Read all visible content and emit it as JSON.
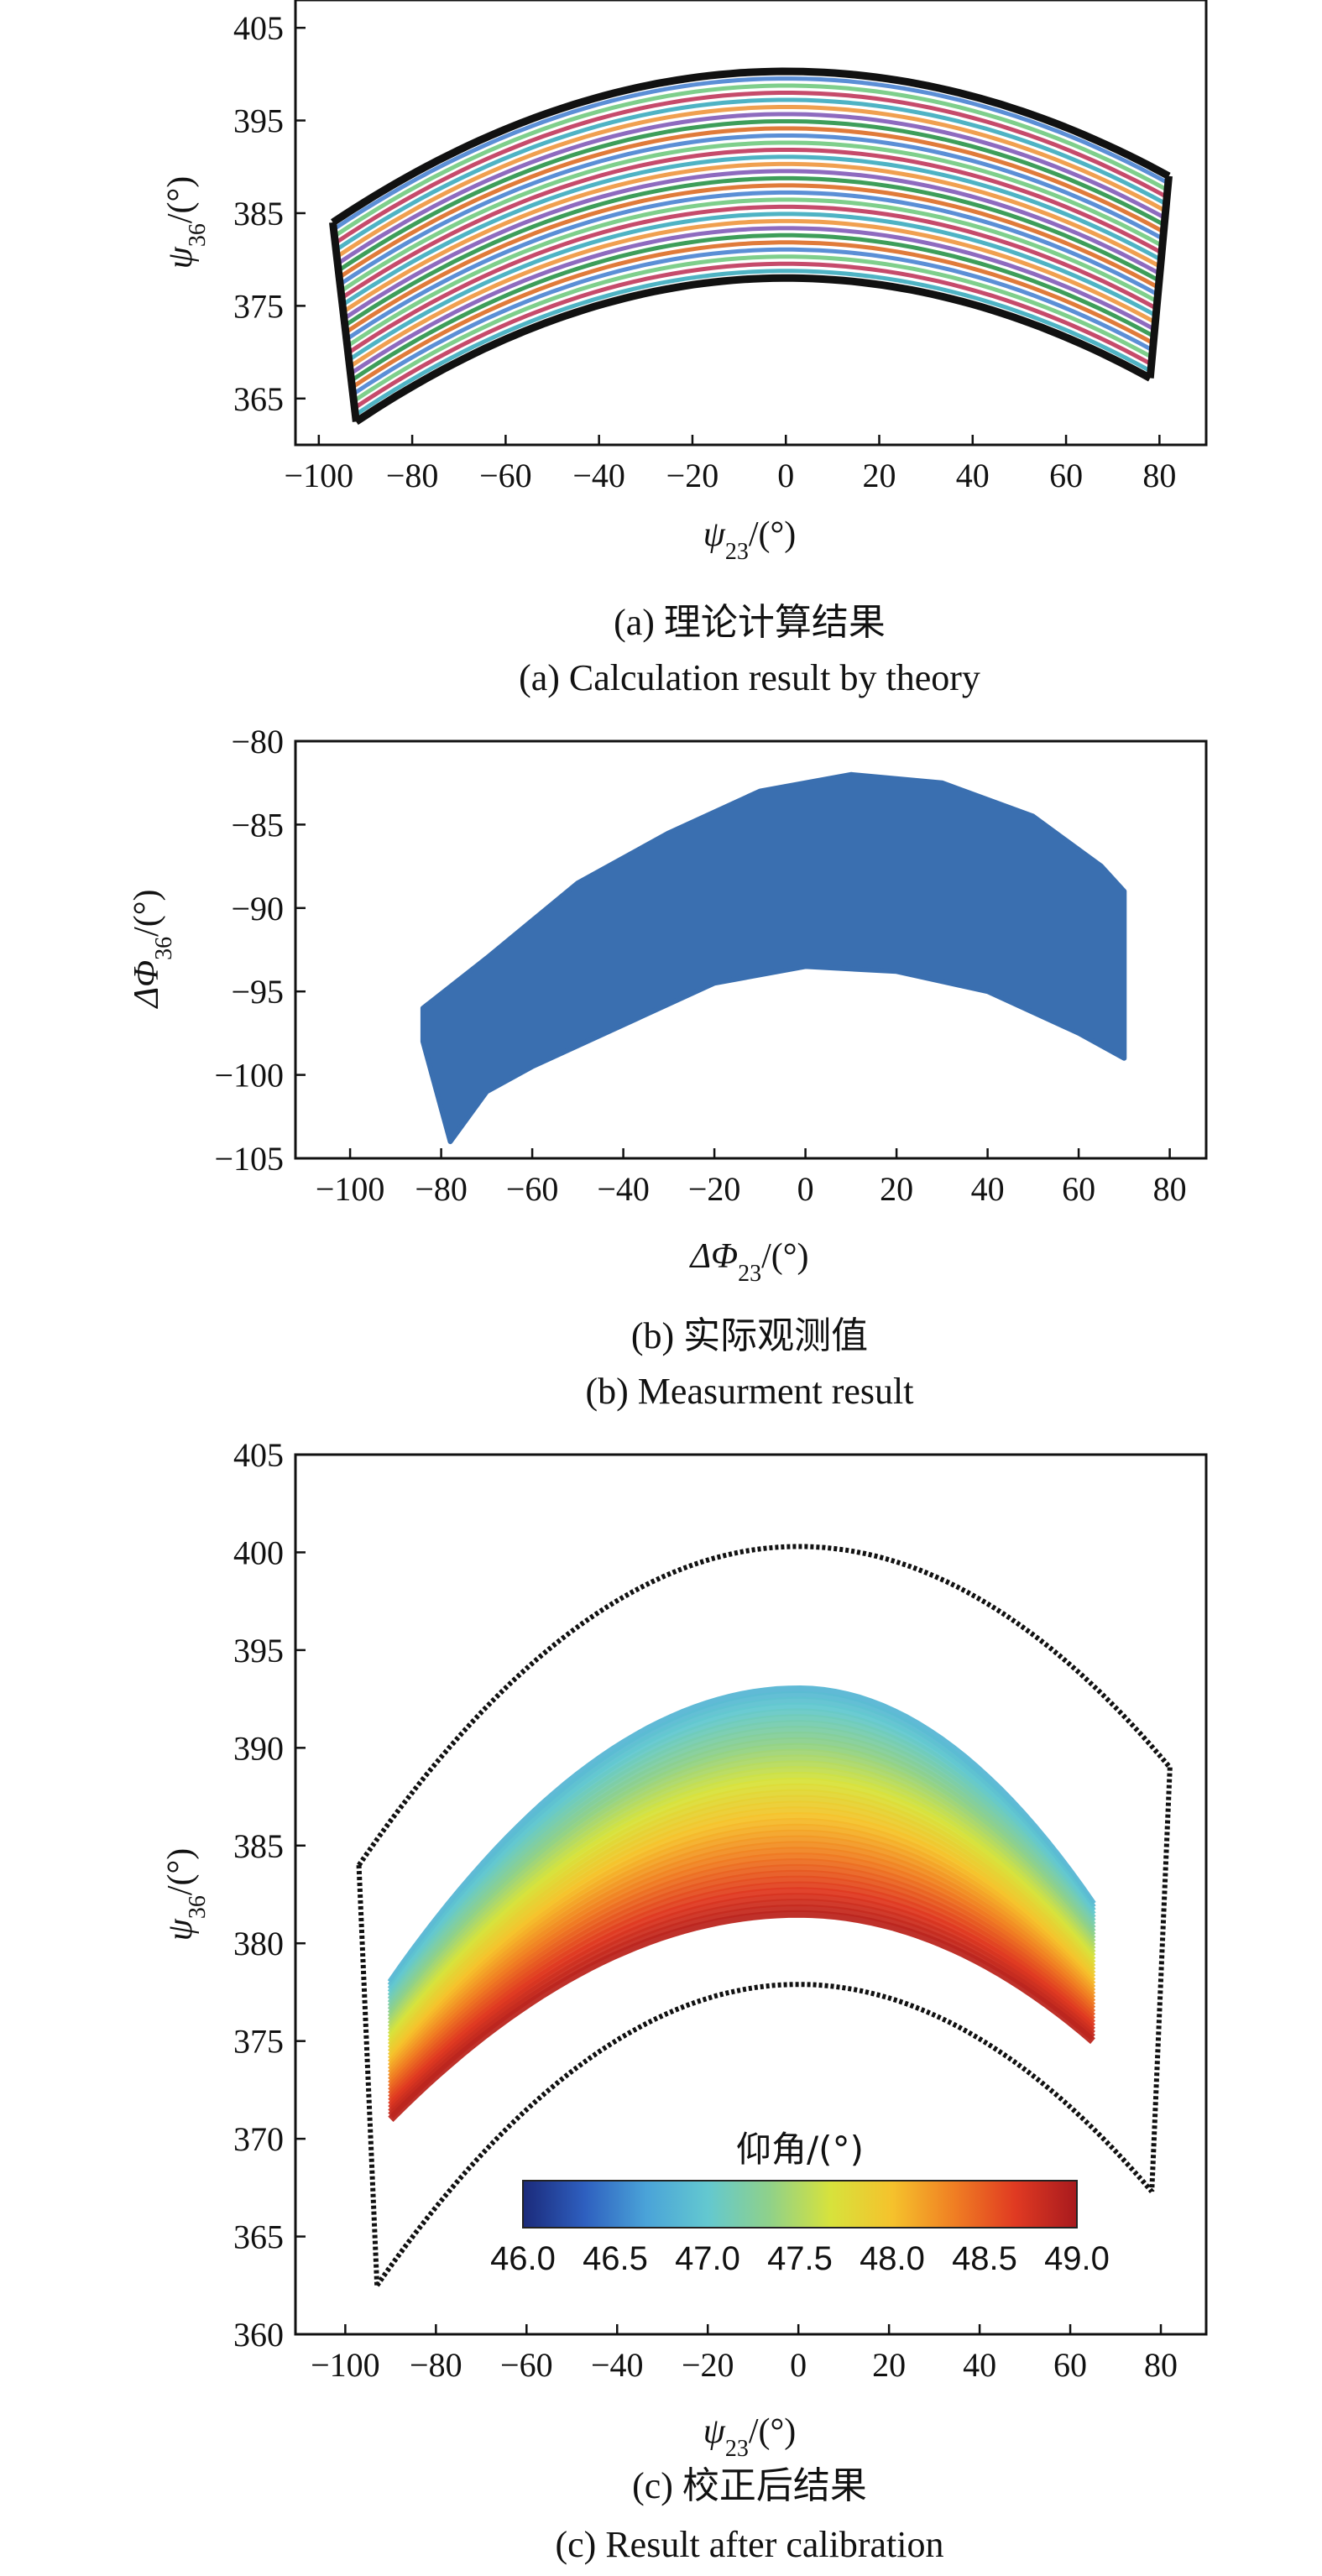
{
  "chart_data": [
    {
      "type": "line",
      "panel": "a",
      "xlabel": "ψ23/(°)",
      "ylabel": "ψ36/(°)",
      "xlim": [
        -105,
        90
      ],
      "ylim": [
        360,
        408
      ],
      "x_ticks": [
        -100,
        -80,
        -60,
        -40,
        -20,
        0,
        20,
        40,
        60,
        80
      ],
      "y_ticks": [
        365,
        375,
        385,
        395,
        405
      ],
      "boundary": {
        "outer_arc": {
          "x_left": -97,
          "y_left": 384,
          "apex_y": 400.3,
          "x_right": 82,
          "y_right": 389
        },
        "inner_arc": {
          "x_left": -92,
          "y_left": 362.5,
          "apex_y": 378,
          "x_right": 78,
          "y_right": 367.2
        }
      },
      "series_count": 30,
      "series_palette": [
        "#e07b3a",
        "#5b8fd6",
        "#7fcf8c",
        "#c64b6b",
        "#4fb3c4",
        "#f0a050",
        "#8e6bbf",
        "#3e9e5a"
      ],
      "grid": false,
      "caption_zh": "(a) 理论计算结果",
      "caption_en": "(a) Calculation result by theory"
    },
    {
      "type": "scatter",
      "panel": "b",
      "xlabel": "ΔΦ23/(°)",
      "ylabel": "ΔΦ36/(°)",
      "xlim": [
        -112,
        88
      ],
      "ylim": [
        -105,
        -80
      ],
      "x_ticks": [
        -100,
        -80,
        -60,
        -40,
        -20,
        0,
        20,
        40,
        60,
        80
      ],
      "y_ticks": [
        -80,
        -85,
        -90,
        -95,
        -100,
        -105
      ],
      "region": {
        "x_range": [
          -84,
          70
        ],
        "upper_boundary": [
          [
            -84,
            -96
          ],
          [
            -70,
            -93
          ],
          [
            -50,
            -88.5
          ],
          [
            -30,
            -85.5
          ],
          [
            -10,
            -83
          ],
          [
            10,
            -82
          ],
          [
            30,
            -82.5
          ],
          [
            50,
            -84.5
          ],
          [
            65,
            -87.5
          ],
          [
            70,
            -89
          ]
        ],
        "lower_boundary": [
          [
            -84,
            -98
          ],
          [
            -78,
            -104
          ],
          [
            -70,
            -101
          ],
          [
            -60,
            -99.5
          ],
          [
            -40,
            -97
          ],
          [
            -20,
            -94.5
          ],
          [
            0,
            -93.5
          ],
          [
            20,
            -93.8
          ],
          [
            40,
            -95
          ],
          [
            60,
            -97.5
          ],
          [
            70,
            -99
          ]
        ]
      },
      "color": "#3a6fb0",
      "grid": false,
      "caption_zh": "(b) 实际观测值",
      "caption_en": "(b) Measurment result"
    },
    {
      "type": "scatter",
      "panel": "c",
      "xlabel": "ψ23/(°)",
      "ylabel": "ψ36/(°)",
      "xlim": [
        -111,
        90
      ],
      "ylim": [
        360,
        405
      ],
      "x_ticks": [
        -100,
        -80,
        -60,
        -40,
        -20,
        0,
        20,
        40,
        60,
        80
      ],
      "y_ticks": [
        360,
        365,
        370,
        375,
        380,
        385,
        390,
        395,
        400,
        405
      ],
      "boundary": {
        "outer_arc": {
          "x_left": -97,
          "y_left": 384,
          "apex_y": 400.3,
          "x_right": 82,
          "y_right": 389
        },
        "inner_arc": {
          "x_left": -93,
          "y_left": 362.5,
          "apex_y": 377.9,
          "x_right": 78,
          "y_right": 367.3
        }
      },
      "scatter_region": {
        "x_range": [
          -90,
          65
        ],
        "top_arc": {
          "apex_y": 393,
          "end_y": 378
        },
        "bottom_arc": {
          "apex_y": 381.5,
          "end_y": 371
        }
      },
      "colorbar": {
        "title": "仰角/(°)",
        "range": [
          46.0,
          49.0
        ],
        "ticks": [
          "46.0",
          "46.5",
          "47.0",
          "47.5",
          "48.0",
          "48.5",
          "49.0"
        ],
        "colormap": [
          "#1b2a7a",
          "#2e5fbf",
          "#4aa3d8",
          "#63c8d0",
          "#8fd18a",
          "#d7e23c",
          "#f5c22c",
          "#f07f23",
          "#e03a22",
          "#a81a1e"
        ]
      },
      "grid": false,
      "caption_zh": "(c) 校正后结果",
      "caption_en": "(c) Result after calibration"
    }
  ]
}
